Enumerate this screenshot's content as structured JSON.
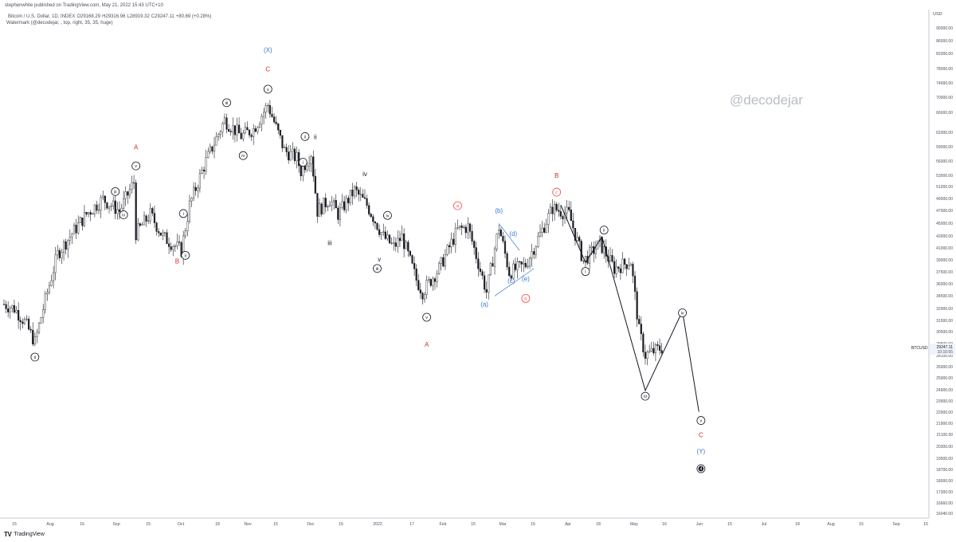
{
  "header": {
    "published": "stephenwhite published on TradingView.com, May 21, 2022 15:43 UTC+10"
  },
  "symbol_line": {
    "name": "Bitcoin / U.S. Dollar, 1D, INDEX",
    "open": "O29168.29",
    "high": "H29316.96",
    "low": "L28919.32",
    "close": "C29247.11",
    "change": "+80.69 (+0.28%)"
  },
  "watermark_line": "Watermark (@decodejar, , top, right, 35, 35, huge)",
  "watermark_text": "@decodejar",
  "footer": {
    "logo": "TV",
    "brand": "TradingView"
  },
  "price_axis": {
    "currency": "USD",
    "ticks": [
      "90000.00",
      "86000.00",
      "82000.00",
      "78000.00",
      "74000.00",
      "70000.00",
      "66000.00",
      "62000.00",
      "59000.00",
      "56000.00",
      "53000.00",
      "51000.00",
      "49000.00",
      "47000.00",
      "45000.00",
      "43000.00",
      "41000.00",
      "39000.00",
      "37500.00",
      "36000.00",
      "34500.00",
      "32900.00",
      "31500.00",
      "30500.00",
      "29500.00",
      "28100.00",
      "26900.00",
      "25900.00",
      "24900.00",
      "23900.00",
      "22900.00",
      "21900.00",
      "21100.00",
      "20300.00",
      "19500.00",
      "18700.00",
      "18000.00",
      "17300.00",
      "16660.00",
      "16040.00"
    ],
    "last_label": "BTCUSD",
    "last_price": "29247.11",
    "countdown": "10:16:55"
  },
  "time_axis": {
    "ticks": [
      "15",
      "Aug",
      "16",
      "Sep",
      "15",
      "Oct",
      "18",
      "Nov",
      "15",
      "Dec",
      "15",
      "2022",
      "17",
      "Feb",
      "15",
      "Mar",
      "15",
      "Apr",
      "18",
      "May",
      "16",
      "Jun",
      "15",
      "Jul",
      "18",
      "Aug",
      "15",
      "Sep",
      "15"
    ]
  },
  "colors": {
    "candle": "#1b1d24",
    "wave_black": "#131722",
    "wave_red": "#d22b2b",
    "wave_blue": "#3a78d2",
    "wave_pink": "#e8504e",
    "grid": "#e7e9ee"
  },
  "chart_data": {
    "type": "candlestick",
    "title": "Bitcoin / U.S. Dollar, 1D, INDEX",
    "scale": "log",
    "ylim": [
      15600,
      96000
    ],
    "x_range": [
      "2021-07-05",
      "2022-09-25"
    ],
    "grid": false,
    "price_path": [
      [
        "2021-07-05",
        34000
      ],
      [
        "2021-07-10",
        33500
      ],
      [
        "2021-07-15",
        32000
      ],
      [
        "2021-07-20",
        29800
      ],
      [
        "2021-07-25",
        34500
      ],
      [
        "2021-07-31",
        40500
      ],
      [
        "2021-08-07",
        43500
      ],
      [
        "2021-08-14",
        46500
      ],
      [
        "2021-08-22",
        49000
      ],
      [
        "2021-08-30",
        47000
      ],
      [
        "2021-09-06",
        52000
      ],
      [
        "2021-09-07",
        43500
      ],
      [
        "2021-09-14",
        46500
      ],
      [
        "2021-09-20",
        43000
      ],
      [
        "2021-09-29",
        41000
      ],
      [
        "2021-10-03",
        48000
      ],
      [
        "2021-10-10",
        55000
      ],
      [
        "2021-10-20",
        64500
      ],
      [
        "2021-10-28",
        61000
      ],
      [
        "2021-11-03",
        62500
      ],
      [
        "2021-11-10",
        68000
      ],
      [
        "2021-11-18",
        58000
      ],
      [
        "2021-11-24",
        56500
      ],
      [
        "2021-11-26",
        54000
      ],
      [
        "2021-12-01",
        57500
      ],
      [
        "2021-12-04",
        47000
      ],
      [
        "2021-12-10",
        49000
      ],
      [
        "2021-12-14",
        46500
      ],
      [
        "2021-12-22",
        50500
      ],
      [
        "2021-12-28",
        48000
      ],
      [
        "2022-01-05",
        43000
      ],
      [
        "2022-01-10",
        41500
      ],
      [
        "2022-01-14",
        43000
      ],
      [
        "2022-01-21",
        37000
      ],
      [
        "2022-01-24",
        35500
      ],
      [
        "2022-02-01",
        38500
      ],
      [
        "2022-02-10",
        44000
      ],
      [
        "2022-02-15",
        44500
      ],
      [
        "2022-02-24",
        35500
      ],
      [
        "2022-03-02",
        44500
      ],
      [
        "2022-03-07",
        38000
      ],
      [
        "2022-03-15",
        39000
      ],
      [
        "2022-03-28",
        47500
      ],
      [
        "2022-04-05",
        46500
      ],
      [
        "2022-04-12",
        39500
      ],
      [
        "2022-04-20",
        42000
      ],
      [
        "2022-04-27",
        38500
      ],
      [
        "2022-05-05",
        39500
      ],
      [
        "2022-05-09",
        31000
      ],
      [
        "2022-05-12",
        28500
      ],
      [
        "2022-05-20",
        29247
      ]
    ],
    "series": [
      {
        "name": "projection",
        "points": [
          [
            "2022-04-01",
            48000
          ],
          [
            "2022-04-13",
            39300
          ],
          [
            "2022-04-21",
            43000
          ],
          [
            "2022-05-12",
            25200
          ],
          [
            "2022-05-30",
            33200
          ],
          [
            "2022-06-07",
            23400
          ]
        ]
      },
      {
        "name": "wave (b)-(d) line",
        "points": [
          [
            "2022-03-02",
            45000
          ],
          [
            "2022-03-12",
            41000
          ]
        ]
      },
      {
        "name": "wave (a)-(e) line",
        "points": [
          [
            "2022-02-28",
            35000
          ],
          [
            "2022-03-19",
            38500
          ]
        ]
      }
    ],
    "wave_labels": [
      {
        "text": "ii",
        "date": "2021-07-20",
        "price": 28300,
        "style": "circle",
        "color": "wave_black"
      },
      {
        "text": "iii",
        "date": "2021-08-28",
        "price": 50300,
        "style": "circle",
        "color": "wave_black"
      },
      {
        "text": "iv",
        "date": "2021-09-01",
        "price": 46400,
        "style": "circle",
        "color": "wave_black"
      },
      {
        "text": "v",
        "date": "2021-09-07",
        "price": 55000,
        "style": "circle",
        "color": "wave_black"
      },
      {
        "text": "A",
        "date": "2021-09-07",
        "price": 58700,
        "style": "plain",
        "color": "wave_red"
      },
      {
        "text": "i",
        "date": "2021-09-30",
        "price": 46600,
        "style": "circle",
        "color": "wave_black"
      },
      {
        "text": "ii",
        "date": "2021-10-01",
        "price": 40300,
        "style": "circle",
        "color": "wave_black"
      },
      {
        "text": "B",
        "date": "2021-09-27",
        "price": 39500,
        "style": "plain",
        "color": "wave_red"
      },
      {
        "text": "iii",
        "date": "2021-10-21",
        "price": 68500,
        "style": "circle",
        "color": "wave_black"
      },
      {
        "text": "iv",
        "date": "2021-10-29",
        "price": 57000,
        "style": "circle",
        "color": "wave_black"
      },
      {
        "text": "v",
        "date": "2021-11-10",
        "price": 71800,
        "style": "circle",
        "color": "wave_black"
      },
      {
        "text": "C",
        "date": "2021-11-10",
        "price": 77000,
        "style": "plain",
        "color": "wave_red"
      },
      {
        "text": "(X)",
        "date": "2021-11-10",
        "price": 82300,
        "style": "plain",
        "color": "wave_blue"
      },
      {
        "text": "i",
        "date": "2021-11-27",
        "price": 55700,
        "style": "circle",
        "color": "wave_black"
      },
      {
        "text": "ii",
        "date": "2021-11-28",
        "price": 60900,
        "style": "circle",
        "color": "wave_black"
      },
      {
        "text": "ii",
        "date": "2021-12-03",
        "price": 60900,
        "style": "plain",
        "color": "wave_black"
      },
      {
        "text": "i",
        "date": "2021-12-02",
        "price": 53400,
        "style": "plain",
        "color": "wave_black"
      },
      {
        "text": "iii",
        "date": "2021-12-10",
        "price": 42100,
        "style": "plain",
        "color": "wave_black"
      },
      {
        "text": "iv",
        "date": "2021-12-27",
        "price": 53500,
        "style": "plain",
        "color": "wave_black"
      },
      {
        "text": "v",
        "date": "2022-01-03",
        "price": 39800,
        "style": "plain",
        "color": "wave_black"
      },
      {
        "text": "iv",
        "date": "2022-01-07",
        "price": 46300,
        "style": "circle",
        "color": "wave_black"
      },
      {
        "text": "iii",
        "date": "2022-01-02",
        "price": 38500,
        "style": "circle",
        "color": "wave_black"
      },
      {
        "text": "v",
        "date": "2022-01-26",
        "price": 32500,
        "style": "circle",
        "color": "wave_black"
      },
      {
        "text": "A",
        "date": "2022-01-26",
        "price": 29600,
        "style": "plain",
        "color": "wave_red"
      },
      {
        "text": "a",
        "date": "2022-02-10",
        "price": 47900,
        "style": "circle",
        "color": "wave_pink"
      },
      {
        "text": "(a)",
        "date": "2022-02-23",
        "price": 34000,
        "style": "plain",
        "color": "wave_blue"
      },
      {
        "text": "(b)",
        "date": "2022-03-02",
        "price": 47100,
        "style": "plain",
        "color": "wave_blue"
      },
      {
        "text": "(c)",
        "date": "2022-03-08",
        "price": 36900,
        "style": "plain",
        "color": "wave_blue"
      },
      {
        "text": "(d)",
        "date": "2022-03-09",
        "price": 43500,
        "style": "plain",
        "color": "wave_blue"
      },
      {
        "text": "(e)",
        "date": "2022-03-15",
        "price": 37200,
        "style": "plain",
        "color": "wave_blue"
      },
      {
        "text": "b",
        "date": "2022-03-15",
        "price": 34700,
        "style": "circle",
        "color": "wave_pink"
      },
      {
        "text": "c",
        "date": "2022-03-30",
        "price": 50200,
        "style": "circle",
        "color": "wave_pink"
      },
      {
        "text": "B",
        "date": "2022-03-30",
        "price": 53200,
        "style": "plain",
        "color": "wave_red"
      },
      {
        "text": "i",
        "date": "2022-04-13",
        "price": 38100,
        "style": "circle",
        "color": "wave_black"
      },
      {
        "text": "ii",
        "date": "2022-04-22",
        "price": 44000,
        "style": "circle",
        "color": "wave_black"
      },
      {
        "text": "iii",
        "date": "2022-05-12",
        "price": 24700,
        "style": "circle",
        "color": "wave_black"
      },
      {
        "text": "iv",
        "date": "2022-05-30",
        "price": 33000,
        "style": "circle",
        "color": "wave_black"
      },
      {
        "text": "v",
        "date": "2022-06-08",
        "price": 22700,
        "style": "circle",
        "color": "wave_black"
      },
      {
        "text": "C",
        "date": "2022-06-08",
        "price": 21600,
        "style": "plain",
        "color": "wave_red"
      },
      {
        "text": "(Y)",
        "date": "2022-06-08",
        "price": 20400,
        "style": "plain",
        "color": "wave_blue"
      },
      {
        "text": "4",
        "date": "2022-06-08",
        "price": 19200,
        "style": "filled",
        "color": "wave_black"
      }
    ]
  }
}
